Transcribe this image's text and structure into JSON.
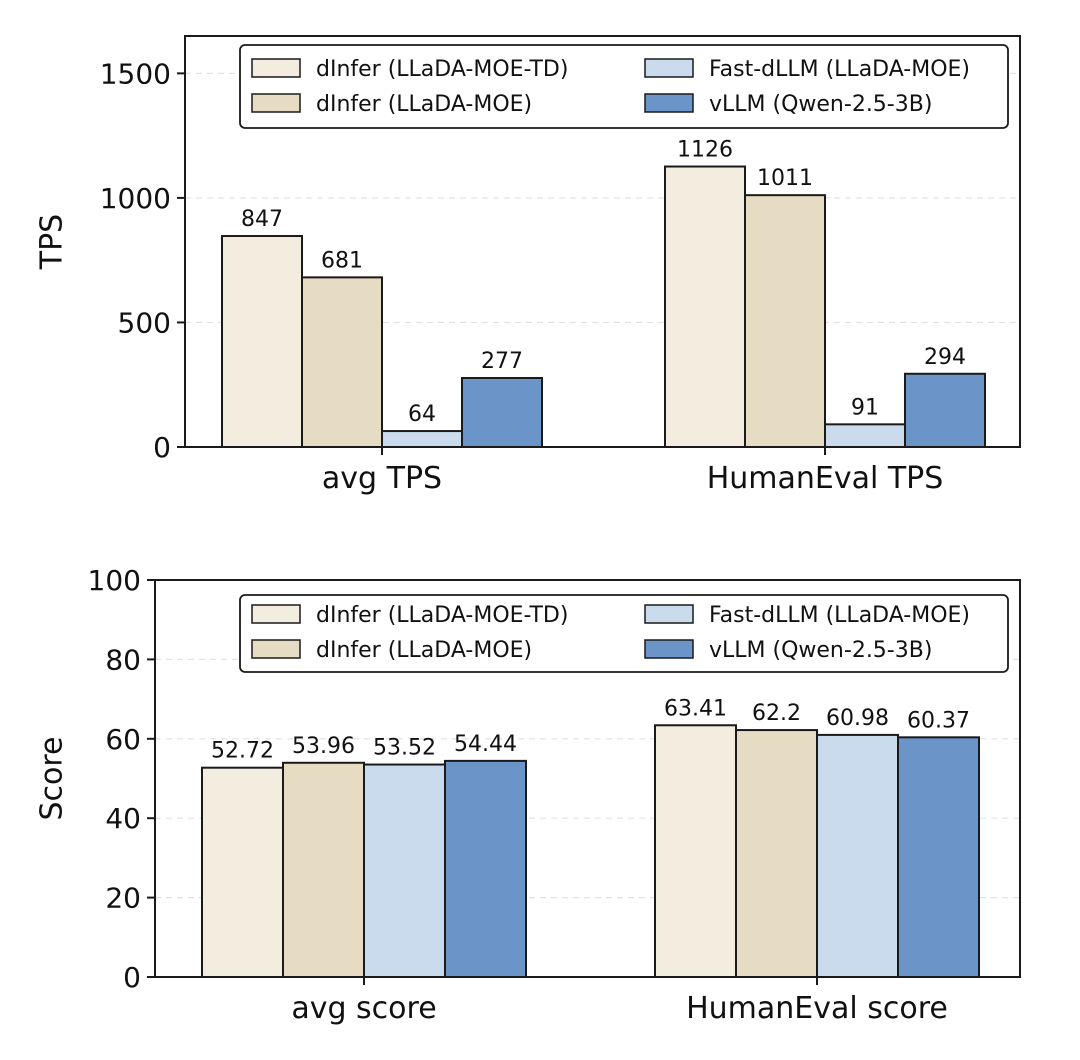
{
  "chart_data": [
    {
      "type": "bar",
      "ylabel": "TPS",
      "xlabel": "",
      "ylim": [
        0,
        1650
      ],
      "yticks": [
        0,
        500,
        1000,
        1500
      ],
      "grid": true,
      "legend_position": "top",
      "categories": [
        "avg TPS",
        "HumanEval TPS"
      ],
      "series": [
        {
          "name": "dInfer (LLaDA-MOE-TD)",
          "color": "#f3ede0",
          "values": [
            847,
            1126
          ],
          "labels": [
            "847",
            "1126"
          ]
        },
        {
          "name": "dInfer (LLaDA-MOE)",
          "color": "#e6dcc3",
          "values": [
            681,
            1011
          ],
          "labels": [
            "681",
            "1011"
          ]
        },
        {
          "name": "Fast-dLLM (LLaDA-MOE)",
          "color": "#c9dbec",
          "values": [
            64,
            91
          ],
          "labels": [
            "64",
            "91"
          ]
        },
        {
          "name": "vLLM (Qwen-2.5-3B)",
          "color": "#6b95c8",
          "values": [
            277,
            294
          ],
          "labels": [
            "277",
            "294"
          ]
        }
      ]
    },
    {
      "type": "bar",
      "ylabel": "Score",
      "xlabel": "",
      "ylim": [
        0,
        100
      ],
      "yticks": [
        0,
        20,
        40,
        60,
        80,
        100
      ],
      "grid": true,
      "legend_position": "top",
      "categories": [
        "avg score",
        "HumanEval score"
      ],
      "series": [
        {
          "name": "dInfer (LLaDA-MOE-TD)",
          "color": "#f3ede0",
          "values": [
            52.72,
            63.41
          ],
          "labels": [
            "52.72",
            "63.41"
          ]
        },
        {
          "name": "dInfer (LLaDA-MOE)",
          "color": "#e6dcc3",
          "values": [
            53.96,
            62.2
          ],
          "labels": [
            "53.96",
            "62.2"
          ]
        },
        {
          "name": "Fast-dLLM (LLaDA-MOE)",
          "color": "#c9dbec",
          "values": [
            53.52,
            60.98
          ],
          "labels": [
            "53.52",
            "60.98"
          ]
        },
        {
          "name": "vLLM (Qwen-2.5-3B)",
          "color": "#6b95c8",
          "values": [
            54.44,
            60.37
          ],
          "labels": [
            "54.44",
            "60.37"
          ]
        }
      ]
    }
  ]
}
